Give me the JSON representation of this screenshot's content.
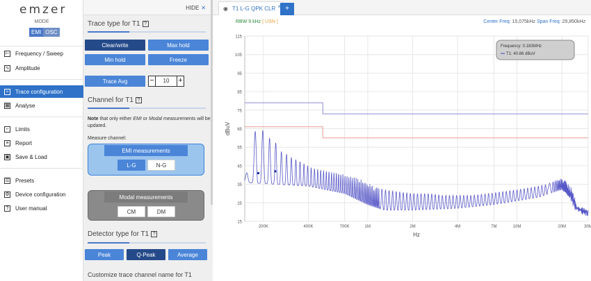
{
  "nav": {
    "logo": "emzer",
    "mode_label": "MODE",
    "mode_emi": "EMI",
    "mode_osc": "OSC",
    "items": [
      {
        "label": "Frequency / Sweep",
        "icon": "tuning-icon",
        "active": false
      },
      {
        "label": "Amplitude",
        "icon": "amplitude-icon",
        "active": false
      },
      {
        "label": "Trace configuration",
        "icon": "trace-icon",
        "active": true
      },
      {
        "label": "Analyse",
        "icon": "analyse-icon",
        "active": false
      },
      {
        "label": "Limits",
        "icon": "limits-icon",
        "active": false
      },
      {
        "label": "Report",
        "icon": "report-icon",
        "active": false
      },
      {
        "label": "Save & Load",
        "icon": "save-icon",
        "active": false
      },
      {
        "label": "Presets",
        "icon": "presets-icon",
        "active": false
      },
      {
        "label": "Device configuration",
        "icon": "gear-icon",
        "active": false
      },
      {
        "label": "User manual",
        "icon": "help-icon",
        "active": false
      }
    ]
  },
  "panel": {
    "hide_label": "HIDE",
    "trace_type_title": "Trace type for T1",
    "trace_buttons": [
      "Clear/write",
      "Max hold",
      "Min hold",
      "Freeze"
    ],
    "trace_avg_label": "Trace Avg",
    "trace_avg_value": "10",
    "stepper_minus": "−",
    "stepper_plus": "+",
    "channel_title": "Channel for T1",
    "note_strong": "Note",
    "note_part1": " that only either ",
    "note_emi": "EMI",
    "note_part2": " or ",
    "note_modal": "Modal",
    "note_part3": " measurements will be updated.",
    "measure_channel": "Measure channel:",
    "emi_measurements": "EMI measurements",
    "emi_options": [
      "L-G",
      "N-G"
    ],
    "modal_measurements": "Modal measurements",
    "modal_options": [
      "CM",
      "DM"
    ],
    "detector_title": "Detector type for T1",
    "detector_buttons": [
      "Peak",
      "Q-Peak",
      "Average"
    ],
    "customize_label": "Customize trace channel name for T1"
  },
  "tab": {
    "label": "T1 L-G QPK CLR",
    "close": "×",
    "add": "+"
  },
  "info": {
    "rbw": "RBW 9 kHz",
    "rbw_mode": "[ USN ]",
    "center_label": "Center Freq:",
    "center_value": "15,075kHz",
    "span_label": "Span Freq:",
    "span_value": "29,850kHz"
  },
  "chart_data": {
    "type": "line",
    "xlabel": "Hz",
    "ylabel": "dBuV",
    "x_scale": "log",
    "xlim": [
      150000,
      30000000
    ],
    "ylim": [
      15,
      115
    ],
    "yticks": [
      15,
      25,
      35,
      45,
      55,
      65,
      75,
      85,
      95,
      105,
      115
    ],
    "xticks": [
      {
        "value": 200000,
        "label": "200K"
      },
      {
        "value": 400000,
        "label": "400K"
      },
      {
        "value": 700000,
        "label": "700K"
      },
      {
        "value": 1000000,
        "label": "1M"
      },
      {
        "value": 2000000,
        "label": "2M"
      },
      {
        "value": 4000000,
        "label": "4M"
      },
      {
        "value": 7000000,
        "label": "7M"
      },
      {
        "value": 10000000,
        "label": "10M"
      },
      {
        "value": 20000000,
        "label": "20M"
      },
      {
        "value": 30000000,
        "label": "30M"
      }
    ],
    "grid": true,
    "tooltip": {
      "frequency_label": "Frequency: 0.183MHz",
      "series_label": "T1: 40.86 dBuV",
      "color": "#5555cc"
    },
    "limit_lines": [
      {
        "color": "#8a8ad8",
        "points": [
          [
            150000,
            79
          ],
          [
            500000,
            79
          ],
          [
            500000,
            73
          ],
          [
            30000000,
            73
          ]
        ]
      },
      {
        "color": "#e99",
        "points": [
          [
            150000,
            66
          ],
          [
            500000,
            66
          ],
          [
            500000,
            60
          ],
          [
            30000000,
            60
          ]
        ]
      }
    ],
    "series_color": "#5858c8",
    "marker_color": "#1a2a9a",
    "envelope": [
      [
        150000,
        39
      ],
      [
        160000,
        44
      ],
      [
        170000,
        58
      ],
      [
        180000,
        67
      ],
      [
        190000,
        62
      ],
      [
        205000,
        66
      ],
      [
        220000,
        60
      ],
      [
        240000,
        58
      ],
      [
        260000,
        53
      ],
      [
        280000,
        52
      ],
      [
        300000,
        50
      ],
      [
        340000,
        48
      ],
      [
        380000,
        46
      ],
      [
        420000,
        44
      ],
      [
        480000,
        43
      ],
      [
        550000,
        42
      ],
      [
        650000,
        41
      ],
      [
        800000,
        39
      ],
      [
        950000,
        37
      ],
      [
        1100000,
        34
      ],
      [
        1300000,
        32
      ],
      [
        1600000,
        31
      ],
      [
        2000000,
        30
      ],
      [
        2600000,
        30
      ],
      [
        3200000,
        29
      ],
      [
        4000000,
        29
      ],
      [
        5000000,
        29
      ],
      [
        6500000,
        30
      ],
      [
        8000000,
        31
      ],
      [
        10000000,
        32
      ],
      [
        12000000,
        33
      ],
      [
        14000000,
        34
      ],
      [
        16000000,
        35
      ],
      [
        18000000,
        37
      ],
      [
        19500000,
        38
      ],
      [
        21000000,
        37
      ],
      [
        23000000,
        33
      ],
      [
        25000000,
        24
      ],
      [
        27000000,
        22
      ],
      [
        30000000,
        20
      ]
    ],
    "trough": [
      [
        150000,
        36
      ],
      [
        400000,
        34
      ],
      [
        700000,
        30
      ],
      [
        1000000,
        24
      ],
      [
        1300000,
        21
      ],
      [
        2000000,
        21
      ],
      [
        4000000,
        22
      ],
      [
        7000000,
        24
      ],
      [
        10000000,
        26
      ],
      [
        14000000,
        28
      ],
      [
        18000000,
        31
      ],
      [
        20000000,
        32
      ],
      [
        23000000,
        27
      ],
      [
        25000000,
        21
      ],
      [
        30000000,
        19
      ]
    ],
    "markers": [
      [
        185000,
        41
      ],
      [
        240000,
        42
      ]
    ]
  }
}
